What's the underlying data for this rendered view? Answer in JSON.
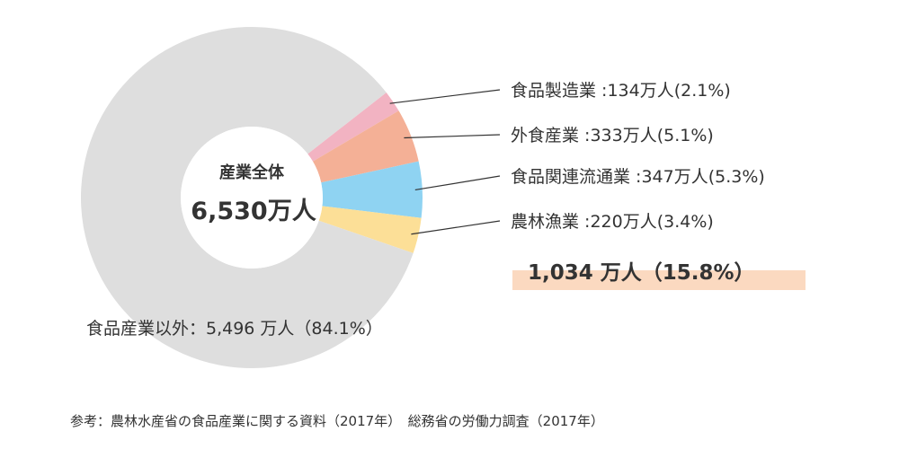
{
  "chart_data": {
    "type": "pie",
    "center": {
      "title": "産業全体",
      "value": "6,530万人"
    },
    "slices": [
      {
        "name": "食品製造業",
        "display_name": "食品製造業",
        "value": 134,
        "percent": 2.1,
        "value_label": "134万人",
        "percent_label": "(2.1%)",
        "color": "#f2b3c2"
      },
      {
        "name": "外食産業",
        "display_name": "外食産業",
        "value": 333,
        "percent": 5.1,
        "value_label": "333万人",
        "percent_label": "(5.1%)",
        "color": "#f4b096"
      },
      {
        "name": "食品関連流通業",
        "display_name": "食品関連流通業",
        "value": 347,
        "percent": 5.3,
        "value_label": "347万人",
        "percent_label": "(5.3%)",
        "color": "#8fd3f2"
      },
      {
        "name": "農林漁業",
        "display_name": "農林漁業",
        "value": 220,
        "percent": 3.4,
        "value_label": "220万人",
        "percent_label": "(3.4%)",
        "color": "#fcdf97"
      },
      {
        "name": "食品産業以外",
        "display_name": "食品産業以外",
        "value": 5496,
        "percent": 84.1,
        "value_label": "5,496 万人",
        "percent_label": "(84.1%)",
        "color": "#dedede"
      }
    ],
    "subtotal": {
      "text": "1,034 万人（15.8%）",
      "highlight_color": "#fbd9c0"
    },
    "source": "参考：農林水産省の食品産業に関する資料（2017年）　総務省の労働力調査（2017年）"
  }
}
